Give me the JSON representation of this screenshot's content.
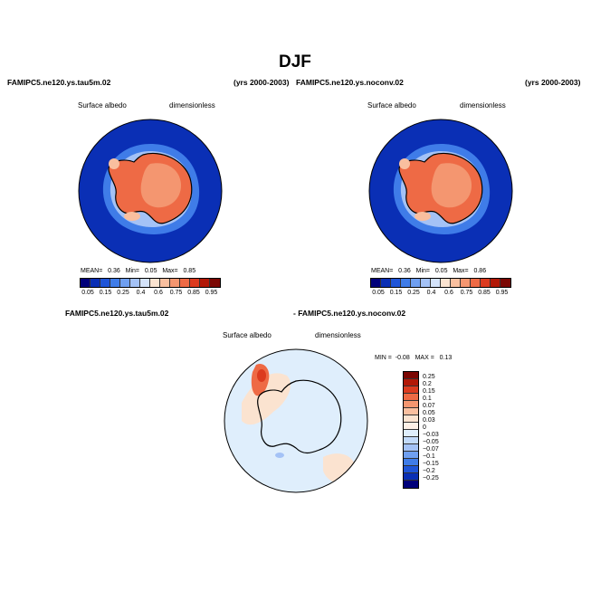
{
  "title": "DJF",
  "left_panel": {
    "case": "FAMIPC5.ne120.ys.tau5m.02",
    "years": "(yrs 2000-2003)",
    "variable": "Surface albedo",
    "units": "dimensionless",
    "stats": {
      "mean_label": "MEAN=",
      "mean": "0.36",
      "min_label": "Min=",
      "min": "0.05",
      "max_label": "Max=",
      "max": "0.85"
    }
  },
  "right_panel": {
    "case": "FAMIPC5.ne120.ys.noconv.02",
    "years": "(yrs 2000-2003)",
    "variable": "Surface albedo",
    "units": "dimensionless",
    "stats": {
      "mean_label": "MEAN=",
      "mean": "0.36",
      "min_label": "Min=",
      "min": "0.05",
      "max_label": "Max=",
      "max": "0.86"
    }
  },
  "diff_panel": {
    "case_a": "FAMIPC5.ne120.ys.tau5m.02",
    "case_b": "- FAMIPC5.ne120.ys.noconv.02",
    "variable": "Surface albedo",
    "units": "dimensionless",
    "stats": {
      "min_label": "MIN =",
      "min": "-0.08",
      "max_label": "MAX =",
      "max": "0.13"
    }
  },
  "abs_colorbar": {
    "labels": [
      "0.05",
      "0.15",
      "0.25",
      "0.4",
      "0.6",
      "0.75",
      "0.85",
      "0.95"
    ],
    "colors": [
      "#00007a",
      "#0a2fb5",
      "#1f55d8",
      "#3f7ce8",
      "#6f9ff0",
      "#a4c2f6",
      "#d4e3fa",
      "#fbe3d0",
      "#f9bf9f",
      "#f49670",
      "#ee6a45",
      "#dc3b1f",
      "#b21807",
      "#7b0703"
    ]
  },
  "diff_colorbar": {
    "labels": [
      "0.25",
      "0.2",
      "0.15",
      "0.1",
      "0.07",
      "0.05",
      "0.03",
      "0",
      "−0.03",
      "−0.05",
      "−0.07",
      "−0.1",
      "−0.15",
      "−0.2",
      "−0.25"
    ],
    "colors": [
      "#7b0703",
      "#b21807",
      "#dc3b1f",
      "#ee6a45",
      "#f49670",
      "#f9bf9f",
      "#fbe3d0",
      "#fdf0e6",
      "#dfeefc",
      "#c2dafa",
      "#a4c2f6",
      "#6f9ff0",
      "#3f7ce8",
      "#1f55d8",
      "#0a2fb5",
      "#00007a"
    ]
  }
}
